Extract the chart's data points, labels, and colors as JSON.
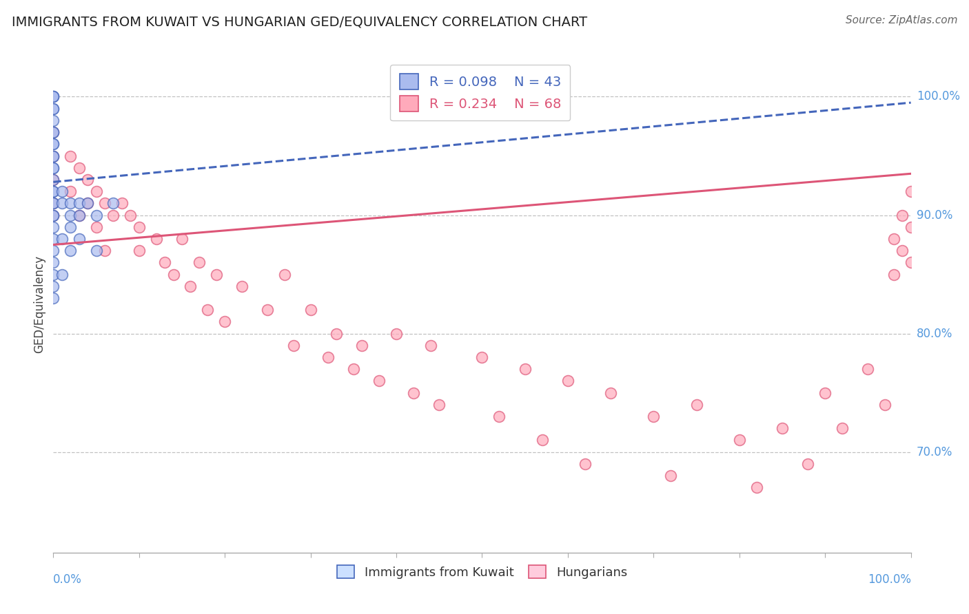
{
  "title": "IMMIGRANTS FROM KUWAIT VS HUNGARIAN GED/EQUIVALENCY CORRELATION CHART",
  "source": "Source: ZipAtlas.com",
  "ylabel": "GED/Equivalency",
  "ylabel_ticks": [
    "100.0%",
    "90.0%",
    "80.0%",
    "70.0%"
  ],
  "ylabel_tick_vals": [
    1.0,
    0.9,
    0.8,
    0.7
  ],
  "xlim": [
    0.0,
    1.0
  ],
  "ylim": [
    0.615,
    1.035
  ],
  "legend_r_blue": "R = 0.098",
  "legend_n_blue": "N = 43",
  "legend_r_pink": "R = 0.234",
  "legend_n_pink": "N = 68",
  "legend_label_blue": "Immigrants from Kuwait",
  "legend_label_pink": "Hungarians",
  "blue_color": "#aabbee",
  "pink_color": "#ffaabb",
  "trendline_blue_color": "#4466bb",
  "trendline_pink_color": "#dd5577",
  "blue_scatter_x": [
    0.0,
    0.0,
    0.0,
    0.0,
    0.0,
    0.0,
    0.0,
    0.0,
    0.0,
    0.0,
    0.0,
    0.0,
    0.0,
    0.0,
    0.0,
    0.0,
    0.0,
    0.0,
    0.0,
    0.0,
    0.0,
    0.0,
    0.0,
    0.0,
    0.0,
    0.0,
    0.0,
    0.0,
    0.01,
    0.01,
    0.01,
    0.01,
    0.02,
    0.02,
    0.02,
    0.02,
    0.03,
    0.03,
    0.03,
    0.04,
    0.05,
    0.05,
    0.07
  ],
  "blue_scatter_y": [
    1.0,
    1.0,
    1.0,
    0.99,
    0.99,
    0.98,
    0.97,
    0.97,
    0.96,
    0.96,
    0.95,
    0.95,
    0.94,
    0.94,
    0.93,
    0.92,
    0.92,
    0.91,
    0.91,
    0.9,
    0.9,
    0.89,
    0.88,
    0.87,
    0.86,
    0.85,
    0.84,
    0.83,
    0.92,
    0.91,
    0.88,
    0.85,
    0.91,
    0.9,
    0.89,
    0.87,
    0.91,
    0.9,
    0.88,
    0.91,
    0.9,
    0.87,
    0.91
  ],
  "pink_scatter_x": [
    0.0,
    0.0,
    0.0,
    0.0,
    0.0,
    0.02,
    0.02,
    0.03,
    0.03,
    0.04,
    0.04,
    0.05,
    0.05,
    0.06,
    0.06,
    0.07,
    0.08,
    0.09,
    0.1,
    0.1,
    0.12,
    0.13,
    0.14,
    0.15,
    0.16,
    0.17,
    0.18,
    0.19,
    0.2,
    0.22,
    0.25,
    0.27,
    0.28,
    0.3,
    0.32,
    0.33,
    0.35,
    0.36,
    0.38,
    0.4,
    0.42,
    0.44,
    0.45,
    0.5,
    0.52,
    0.55,
    0.57,
    0.6,
    0.62,
    0.65,
    0.7,
    0.72,
    0.75,
    0.8,
    0.82,
    0.85,
    0.88,
    0.9,
    0.92,
    0.95,
    0.97,
    0.98,
    0.98,
    0.99,
    0.99,
    1.0,
    1.0,
    1.0
  ],
  "pink_scatter_y": [
    0.97,
    0.95,
    0.93,
    0.91,
    0.9,
    0.95,
    0.92,
    0.94,
    0.9,
    0.93,
    0.91,
    0.92,
    0.89,
    0.91,
    0.87,
    0.9,
    0.91,
    0.9,
    0.89,
    0.87,
    0.88,
    0.86,
    0.85,
    0.88,
    0.84,
    0.86,
    0.82,
    0.85,
    0.81,
    0.84,
    0.82,
    0.85,
    0.79,
    0.82,
    0.78,
    0.8,
    0.77,
    0.79,
    0.76,
    0.8,
    0.75,
    0.79,
    0.74,
    0.78,
    0.73,
    0.77,
    0.71,
    0.76,
    0.69,
    0.75,
    0.73,
    0.68,
    0.74,
    0.71,
    0.67,
    0.72,
    0.69,
    0.75,
    0.72,
    0.77,
    0.74,
    0.88,
    0.85,
    0.9,
    0.87,
    0.92,
    0.89,
    0.86
  ],
  "background_color": "#ffffff",
  "grid_color": "#bbbbbb",
  "title_color": "#222222",
  "tick_label_color": "#5599dd",
  "title_fontsize": 14,
  "source_fontsize": 11,
  "axis_label_fontsize": 12,
  "tick_fontsize": 12,
  "legend_fontsize": 14
}
